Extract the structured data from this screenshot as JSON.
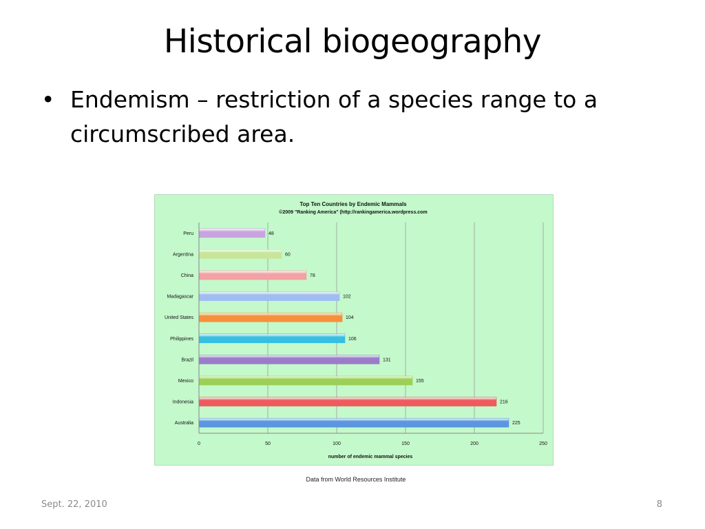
{
  "slide": {
    "title": "Historical biogeography",
    "bullets": [
      {
        "marker": "•",
        "text": "Endemism – restriction of a species range to a circumscribed area."
      }
    ],
    "caption": "Data from World Resources Institute",
    "footer": {
      "date": "Sept. 22, 2010",
      "page": "8"
    }
  },
  "chart_data": {
    "type": "bar",
    "orientation": "horizontal",
    "title": "Top Ten Countries by Endemic Mammals",
    "subtitle": "©2009 \"Ranking America\" (http://rankingamerica.wordpress.com",
    "xlabel": "number of endemic mammal species",
    "ylabel": "",
    "xlim": [
      0,
      250
    ],
    "xticks": [
      0,
      50,
      100,
      150,
      200,
      250
    ],
    "grid": true,
    "legend": "none",
    "background": "#c4f9cb",
    "categories": [
      "Peru",
      "Argentina",
      "China",
      "Madagascar",
      "United States",
      "Philippines",
      "Brazil",
      "Mexico",
      "Indonesia",
      "Australia"
    ],
    "values": [
      48,
      60,
      78,
      102,
      104,
      106,
      131,
      155,
      216,
      225
    ],
    "colors": [
      "#c9a3e0",
      "#c7e69a",
      "#f4a0a4",
      "#9fbdf0",
      "#f5913a",
      "#36bfe0",
      "#9b7cc9",
      "#9ccf55",
      "#ee5a5e",
      "#5b97df"
    ]
  }
}
